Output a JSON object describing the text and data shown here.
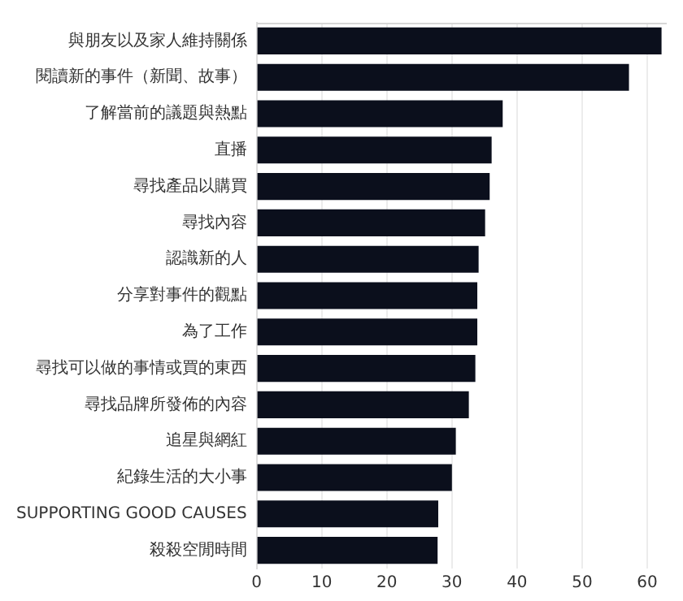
{
  "chart_data": {
    "type": "bar",
    "orientation": "horizontal",
    "categories": [
      "與朋友以及家人維持關係",
      "閱讀新的事件（新聞、故事）",
      "了解當前的議題與熱點",
      "直播",
      "尋找產品以購買",
      "尋找內容",
      "認識新的人",
      "分享對事件的觀點",
      "為了工作",
      "尋找可以做的事情或買的東西",
      "尋找品牌所發佈的內容",
      "追星與網紅",
      "紀錄生活的大小事",
      "SUPPORTING GOOD CAUSES",
      "殺殺空閒時間"
    ],
    "values": [
      62.2,
      57.2,
      37.8,
      36.1,
      35.8,
      35.1,
      34.1,
      33.9,
      33.9,
      33.6,
      32.6,
      30.6,
      30.0,
      27.9,
      27.8
    ],
    "color": "#0b0f1c",
    "xlim": [
      0,
      63
    ],
    "xticks": [
      0,
      10,
      20,
      30,
      40,
      50,
      60
    ],
    "grid": "x",
    "legend": false
  }
}
